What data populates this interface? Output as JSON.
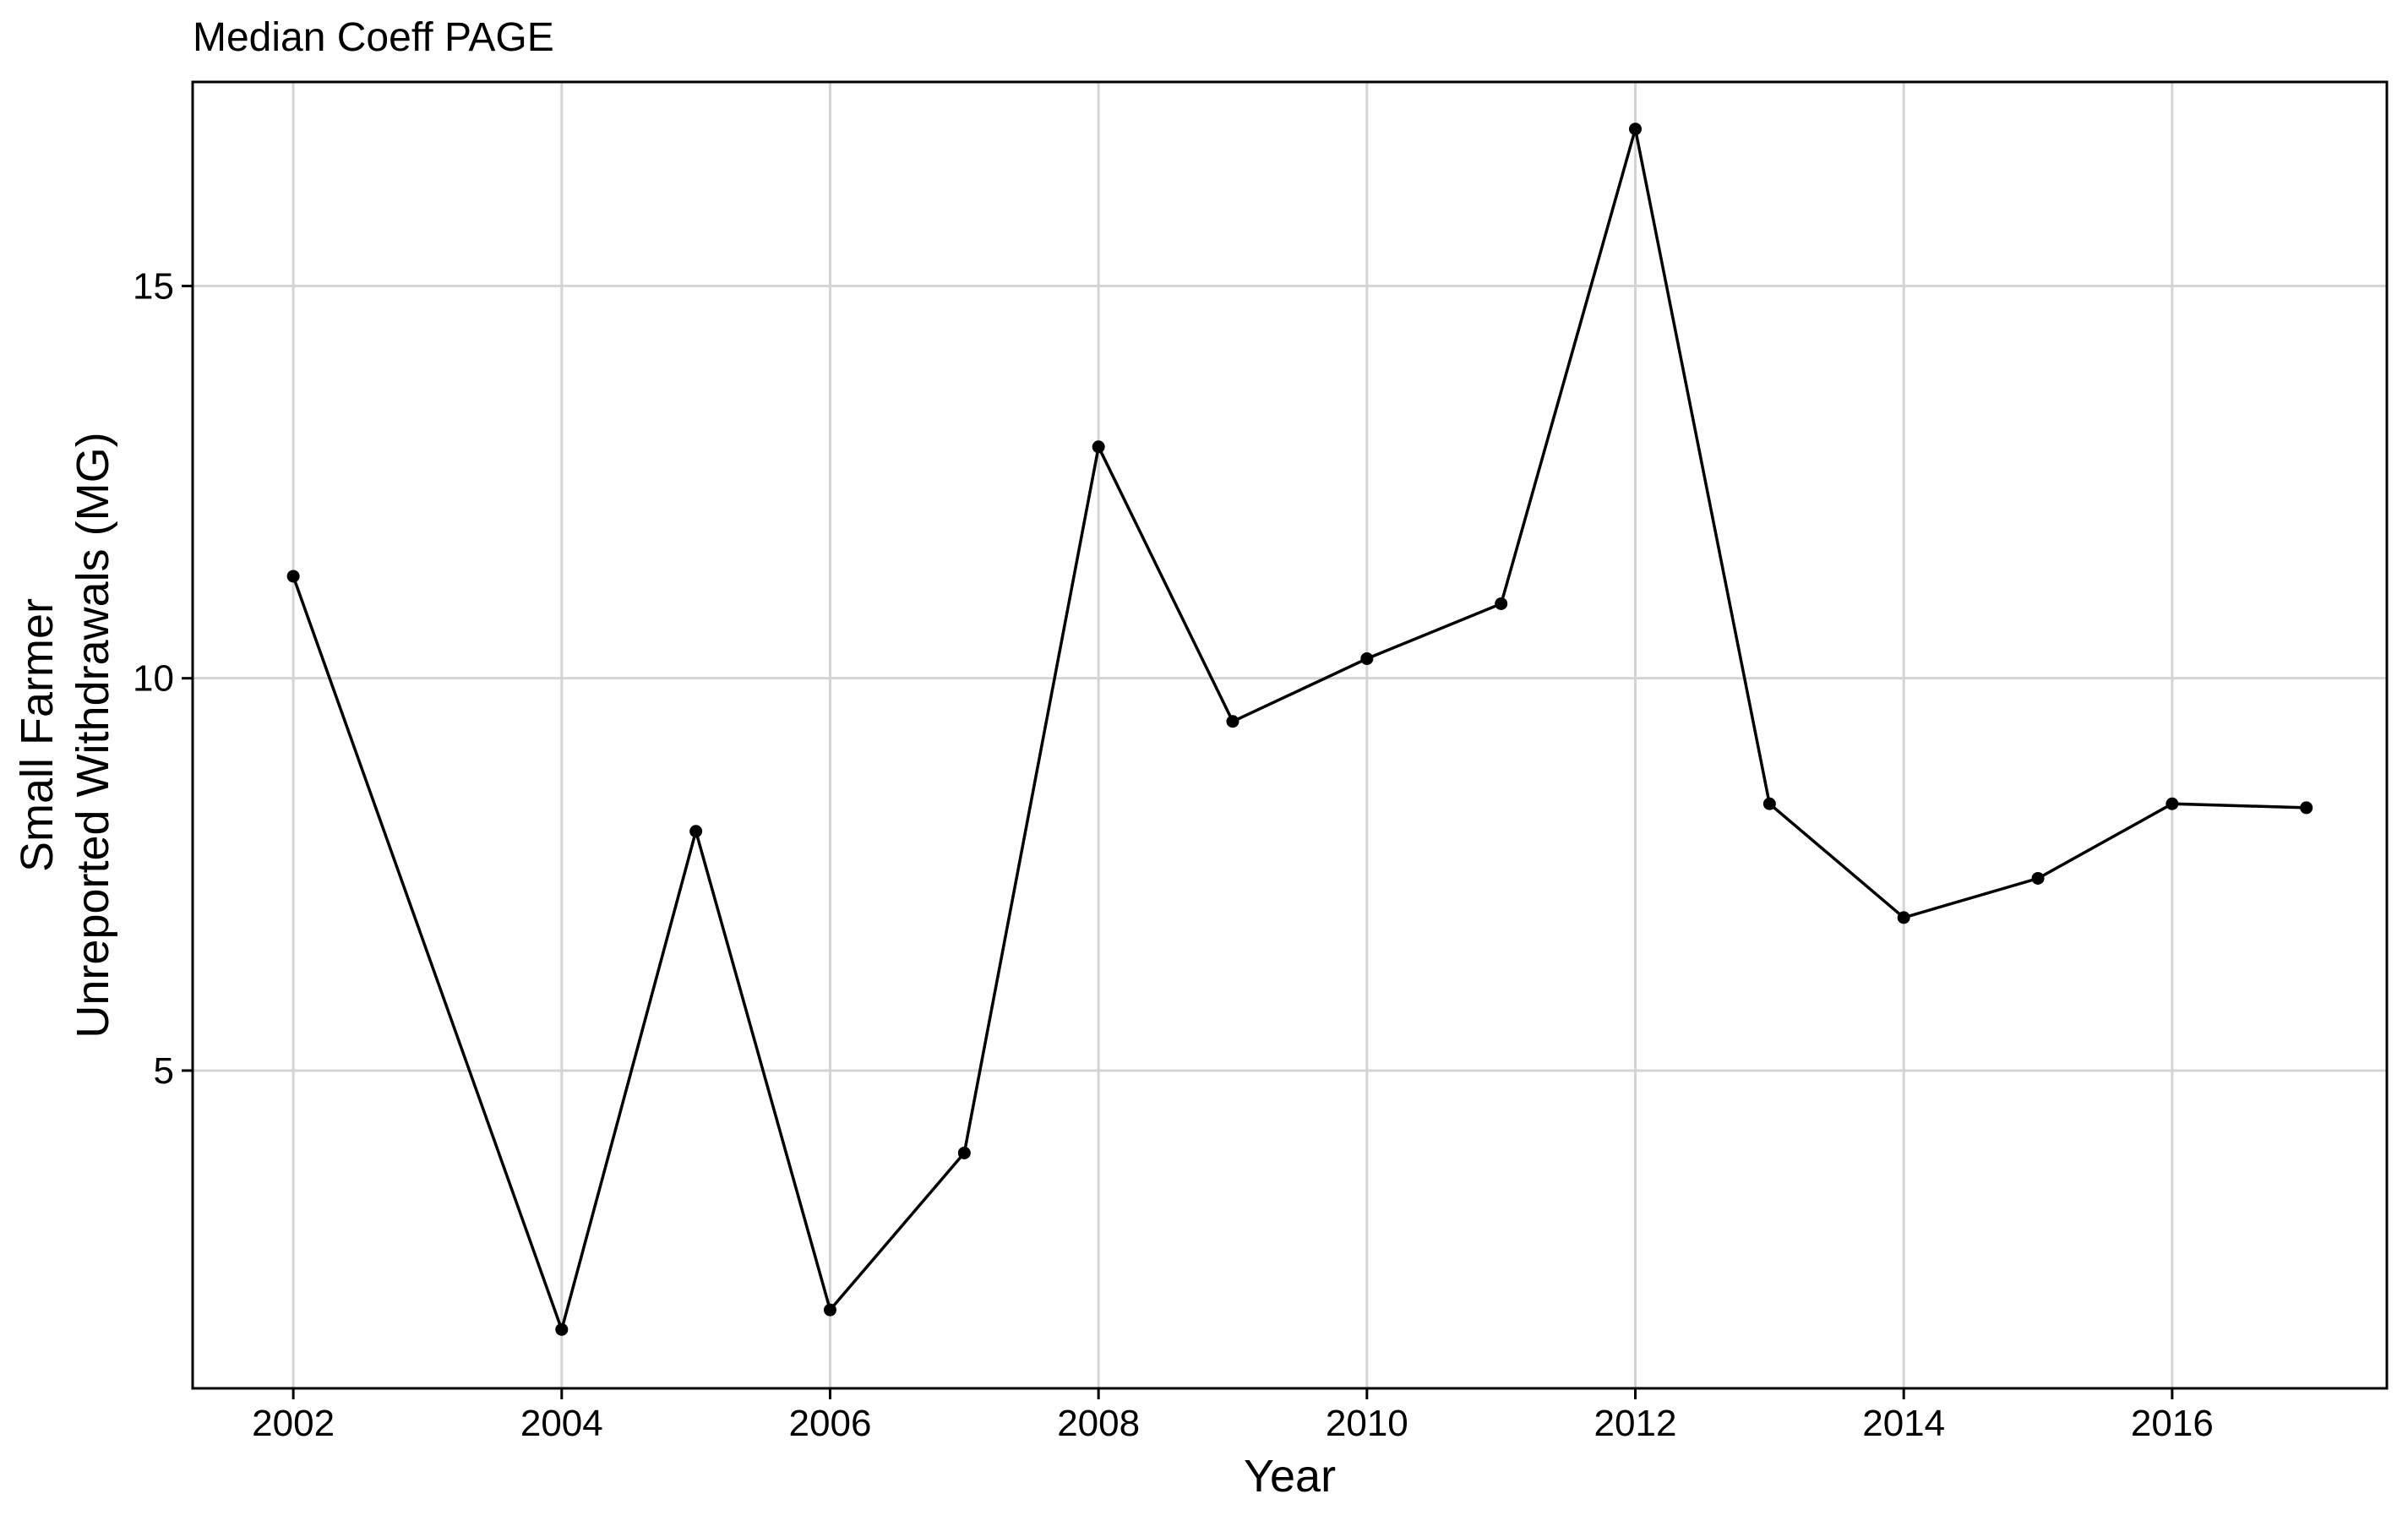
{
  "chart_data": {
    "type": "line",
    "title": "Median Coeff PAGE",
    "xlabel": "Year",
    "ylabel": [
      "Small Farmer",
      "Unreported Withdrawals (MG)"
    ],
    "xlim": [
      2001.25,
      2017.6
    ],
    "ylim": [
      0.95,
      17.6
    ],
    "x_ticks": [
      2002,
      2004,
      2006,
      2008,
      2010,
      2012,
      2014,
      2016
    ],
    "y_ticks": [
      5,
      10,
      15
    ],
    "grid": true,
    "legend": "none",
    "series": [
      {
        "color": "#000000",
        "points": [
          {
            "x": 2002,
            "y": 11.3
          },
          {
            "x": 2004,
            "y": 1.7
          },
          {
            "x": 2005,
            "y": 8.05
          },
          {
            "x": 2006,
            "y": 1.95
          },
          {
            "x": 2007,
            "y": 3.95
          },
          {
            "x": 2008,
            "y": 12.95
          },
          {
            "x": 2009,
            "y": 9.45
          },
          {
            "x": 2010,
            "y": 10.25
          },
          {
            "x": 2011,
            "y": 10.95
          },
          {
            "x": 2012,
            "y": 17.0
          },
          {
            "x": 2013,
            "y": 8.4
          },
          {
            "x": 2014,
            "y": 6.95
          },
          {
            "x": 2015,
            "y": 7.45
          },
          {
            "x": 2016,
            "y": 8.4
          },
          {
            "x": 2017,
            "y": 8.35
          }
        ]
      }
    ]
  }
}
